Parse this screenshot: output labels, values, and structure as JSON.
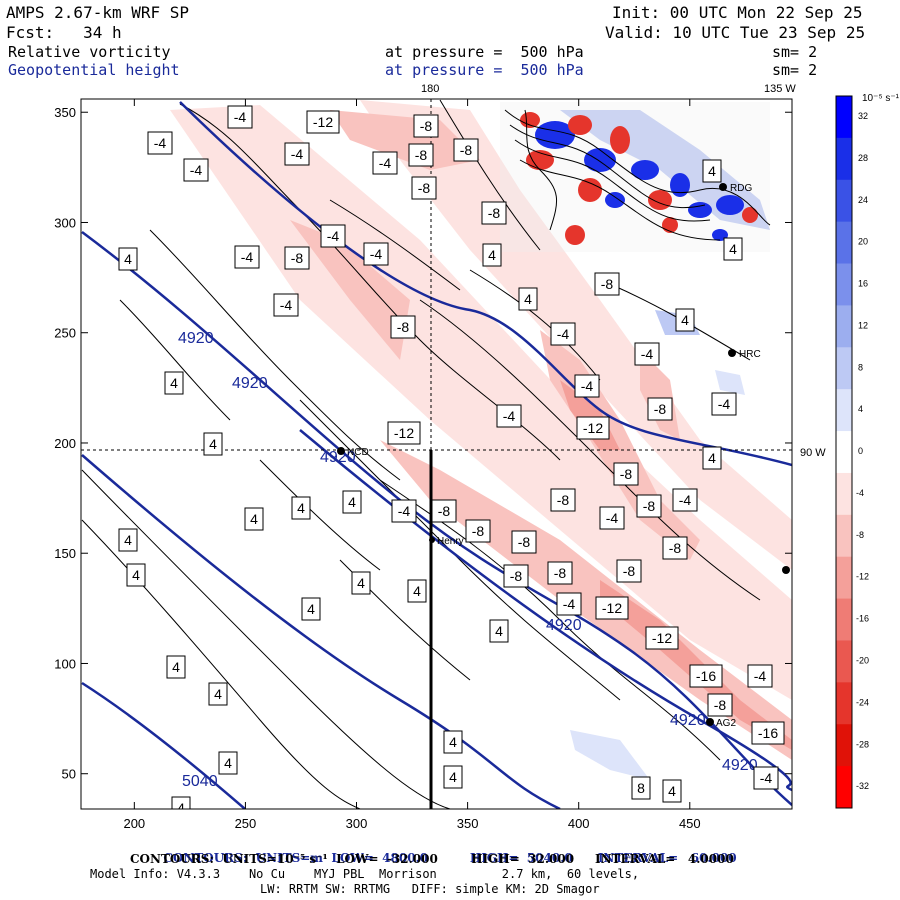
{
  "header": {
    "model_title": "AMPS 2.67-km WRF SP",
    "init": "Init: 00 UTC Mon 22 Sep 25",
    "fcst": "Fcst:   34 h",
    "valid": "Valid: 10 UTC Tue 23 Sep 25",
    "field1_name": "Relative vorticity",
    "field1_level": "at pressure =  500 hPa",
    "field1_sm": "sm= 2",
    "field2_name": "Geopotential height",
    "field2_level": "at pressure =  500 hPa",
    "field2_sm": "sm= 2"
  },
  "map": {
    "top_labels": [
      "180",
      "135 W"
    ],
    "right_label": "90 W",
    "stations": [
      "RDG",
      "HRC",
      "NCD",
      "Henry",
      "AG2"
    ],
    "x_ticks": [
      "200",
      "250",
      "300",
      "350",
      "400",
      "450"
    ],
    "y_ticks": [
      "350",
      "300",
      "250",
      "200",
      "150",
      "100",
      "50"
    ],
    "height_labels": [
      "4920",
      "4920",
      "4920",
      "4920",
      "4920",
      "4920",
      "5040"
    ],
    "vort_labels_neg": [
      "-4",
      "-12",
      "-8",
      "-4",
      "-4",
      "-8",
      "-8",
      "-4",
      "-8",
      "-4",
      "-8",
      "-4",
      "-4",
      "-4",
      "-8",
      "-8",
      "-4",
      "-4",
      "-8",
      "-12",
      "-4",
      "-4",
      "-8",
      "-4",
      "-4",
      "-12",
      "-8",
      "-8",
      "-4",
      "-8",
      "-8",
      "-8",
      "-8",
      "-8",
      "-8",
      "-4",
      "-4",
      "-12",
      "-12",
      "-16",
      "-4",
      "-8",
      "-16",
      "-4",
      "-8",
      "-4",
      "-8"
    ],
    "vort_labels_pos": [
      "4",
      "4",
      "4",
      "4",
      "4",
      "4",
      "4",
      "4",
      "4",
      "4",
      "4",
      "4",
      "4",
      "4",
      "4",
      "4",
      "4",
      "4",
      "4",
      "4",
      "4",
      "8",
      "4",
      "4",
      "4",
      "4"
    ]
  },
  "colorbar": {
    "unit": "10⁻⁵ s⁻¹",
    "labels": [
      "32",
      "28",
      "24",
      "20",
      "16",
      "12",
      "8",
      "4",
      "0",
      "-4",
      "-8",
      "-12",
      "-16",
      "-20",
      "-24",
      "-28",
      "-32"
    ],
    "colors": [
      "#0000ff",
      "#1a2fe8",
      "#3a52e6",
      "#5a72e8",
      "#7b90ec",
      "#9caeef",
      "#bdc9f4",
      "#dde4fa",
      "#ffffff",
      "#fde3e1",
      "#f9c3bf",
      "#f4a09a",
      "#ef7c75",
      "#ea5850",
      "#e5352c",
      "#e01208",
      "#ff0000"
    ]
  },
  "footer": {
    "line1_label": "CONTOURS:",
    "line1_units": "UNITS=m",
    "line1_low": "LOW=  4800.0",
    "line1_high": "HIGH=  5040.0",
    "line1_interval": "INTERVAL=   60.000",
    "line2": "CONTOURS:  UNITS=10⁻⁵ s⁻¹  LOW=  -32.000        HIGH=  32.000     INTERVAL=   4.0000",
    "line3": "Model Info: V4.3.3    No Cu    MYJ PBL  Morrison         2.7 km,  60 levels,",
    "line4": "LW: RRTM SW: RRTMG   DIFF: simple KM: 2D Smagor"
  }
}
